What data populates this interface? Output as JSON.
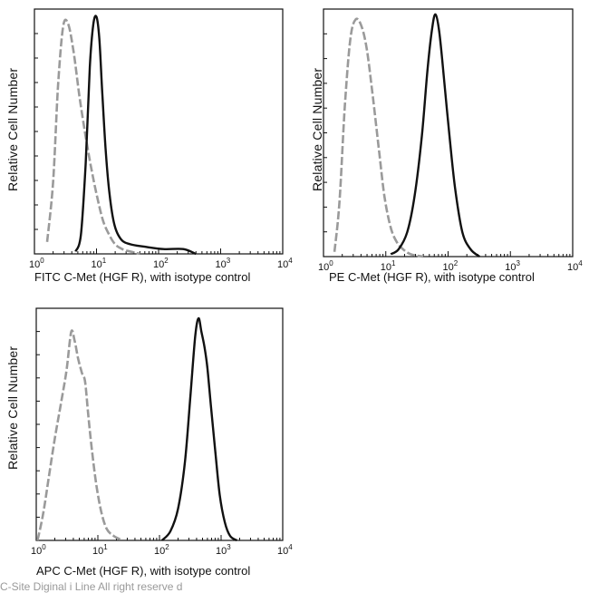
{
  "chart_data": [
    {
      "type": "line",
      "id": "fitc",
      "ylabel": "Relative Cell Number",
      "xlabel": "FITC  C-Met (HGF R),  with isotype control",
      "x_scale": "log",
      "xlim": [
        1,
        10000
      ],
      "x_ticks": [
        {
          "base": "10",
          "exp": "0"
        },
        {
          "base": "10",
          "exp": "1"
        },
        {
          "base": "10",
          "exp": "2"
        },
        {
          "base": "10",
          "exp": "3"
        },
        {
          "base": "10",
          "exp": "4"
        }
      ],
      "ylim": [
        0,
        100
      ],
      "series": [
        {
          "style": "dashed",
          "color": "#9a9a9a",
          "x": [
            1.6,
            2.0,
            2.4,
            2.9,
            3.5,
            4.3,
            5.3,
            6.6,
            8.2,
            10.2,
            12.7,
            16,
            20,
            26,
            35,
            50
          ],
          "y": [
            5,
            30,
            70,
            95,
            96,
            84,
            66,
            50,
            36,
            24,
            14,
            8,
            4,
            2,
            1,
            0
          ]
        },
        {
          "style": "solid",
          "color": "#111111",
          "x": [
            4.6,
            5.6,
            6.7,
            7.8,
            8.9,
            10.0,
            11.1,
            12.4,
            14.0,
            16.2,
            19.5,
            25,
            35,
            60,
            120,
            250,
            400
          ],
          "y": [
            1,
            8,
            38,
            78,
            96,
            99,
            90,
            67,
            44,
            25,
            12,
            6,
            4,
            3,
            2,
            2,
            0
          ]
        }
      ]
    },
    {
      "type": "line",
      "id": "pe",
      "ylabel": "Relative Cell Number",
      "xlabel": "PE  C-Met (HGF R),  with isotype control",
      "x_scale": "log",
      "xlim": [
        1,
        10000
      ],
      "x_ticks": [
        {
          "base": "10",
          "exp": "0"
        },
        {
          "base": "10",
          "exp": "1"
        },
        {
          "base": "10",
          "exp": "2"
        },
        {
          "base": "10",
          "exp": "3"
        },
        {
          "base": "10",
          "exp": "4"
        }
      ],
      "ylim": [
        0,
        100
      ],
      "series": [
        {
          "style": "dashed",
          "color": "#9a9a9a",
          "x": [
            1.5,
            1.8,
            2.2,
            2.7,
            3.3,
            4.1,
            5.0,
            6.2,
            7.7,
            9.5,
            12,
            15,
            19,
            25,
            40
          ],
          "y": [
            2,
            22,
            62,
            90,
            98,
            95,
            85,
            66,
            45,
            25,
            12,
            6,
            3,
            1,
            0
          ]
        },
        {
          "style": "solid",
          "color": "#111111",
          "x": [
            12,
            16,
            22,
            29,
            38,
            47,
            56,
            63,
            72,
            85,
            105,
            130,
            170,
            230,
            320
          ],
          "y": [
            1,
            3,
            10,
            25,
            50,
            78,
            95,
            100,
            93,
            75,
            50,
            28,
            10,
            3,
            0
          ]
        }
      ]
    },
    {
      "type": "line",
      "id": "apc",
      "ylabel": "Relative Cell Number",
      "xlabel": "APC C-Met (HGF R), with isotype control",
      "x_scale": "log",
      "xlim": [
        1,
        10000
      ],
      "x_ticks": [
        {
          "base": "10",
          "exp": "0"
        },
        {
          "base": "10",
          "exp": "1"
        },
        {
          "base": "10",
          "exp": "2"
        },
        {
          "base": "10",
          "exp": "3"
        },
        {
          "base": "10",
          "exp": "4"
        }
      ],
      "ylim": [
        0,
        100
      ],
      "series": [
        {
          "style": "dashed",
          "color": "#9a9a9a",
          "x": [
            1.05,
            1.3,
            1.6,
            2.0,
            2.5,
            3.1,
            3.7,
            4.2,
            4.8,
            5.5,
            6.2,
            7.0,
            8.0,
            9.5,
            11.5,
            14,
            18,
            25
          ],
          "y": [
            0,
            12,
            28,
            45,
            60,
            75,
            92,
            88,
            80,
            74,
            70,
            55,
            40,
            24,
            12,
            5,
            2,
            0
          ]
        },
        {
          "style": "solid",
          "color": "#111111",
          "x": [
            110,
            150,
            200,
            260,
            320,
            380,
            430,
            480,
            540,
            600,
            680,
            800,
            950,
            1150,
            1400,
            1800
          ],
          "y": [
            0,
            4,
            14,
            35,
            65,
            90,
            98,
            92,
            85,
            76,
            60,
            40,
            20,
            8,
            2,
            0
          ]
        }
      ]
    }
  ],
  "footer_text": "C-Site  Diginal  i  Line  All  right  reserve  d"
}
